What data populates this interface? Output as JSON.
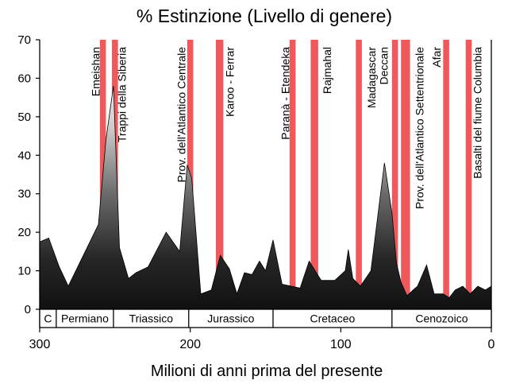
{
  "chart_data": {
    "type": "area",
    "title": "% Estinzione (Livello di genere)",
    "xlabel": "Milioni di anni prima del presente",
    "ylabel": "",
    "xlim": [
      300,
      0
    ],
    "ylim": [
      0,
      70
    ],
    "x_ticks": [
      300,
      200,
      100,
      0
    ],
    "y_ticks": [
      0,
      10,
      20,
      30,
      40,
      50,
      60,
      70
    ],
    "grid": false,
    "colors": {
      "area_dark": "#1a1a1a",
      "area_peak": "#d8d8d8",
      "event_band": "#f0595c",
      "axis": "#000000",
      "background": "#ffffff"
    },
    "series": [
      {
        "x": [
          300,
          294,
          287,
          281,
          261,
          256,
          251,
          247,
          241,
          236,
          228,
          216,
          207,
          202,
          199,
          193,
          186,
          180,
          174,
          169,
          164,
          159,
          154,
          150,
          145,
          139,
          133,
          127,
          121,
          113,
          104,
          97,
          95,
          92,
          87,
          80,
          71,
          66,
          63,
          60,
          56,
          52,
          49,
          43,
          38,
          32,
          28,
          24,
          19,
          14,
          9,
          4,
          0
        ],
        "values": [
          17.5,
          18.5,
          11,
          6,
          22,
          44,
          58,
          16,
          8,
          9.5,
          11,
          20,
          15,
          37.5,
          34,
          4,
          5,
          14,
          10.5,
          4,
          9.5,
          9,
          12.5,
          10,
          18,
          6.5,
          6,
          5.5,
          12.5,
          7.5,
          7.5,
          10,
          15.5,
          8,
          6,
          10,
          38,
          25,
          12,
          7,
          3.5,
          5,
          6,
          11.5,
          4,
          4,
          3,
          5,
          6,
          4,
          6,
          5,
          6
        ]
      }
    ],
    "events": [
      {
        "label": "Emeishan",
        "start": 260,
        "end": 256
      },
      {
        "label": "Trappi della Siberia",
        "start": 252,
        "end": 248
      },
      {
        "label": "Prov. dell'Atlantico Centrale",
        "start": 202,
        "end": 198
      },
      {
        "label": "Karoo - Ferrar",
        "start": 183,
        "end": 178
      },
      {
        "label": "Paranà - Etendeka",
        "start": 134,
        "end": 130
      },
      {
        "label": "Rajmahal",
        "start": 120,
        "end": 115
      },
      {
        "label": "Madagascar",
        "start": 90,
        "end": 86
      },
      {
        "label": "Deccan",
        "start": 66,
        "end": 62
      },
      {
        "label": "Prov. dell'Atlantico Settentrionale",
        "start": 60,
        "end": 54
      },
      {
        "label": "Afar",
        "start": 32,
        "end": 28
      },
      {
        "label": "Basalti del fiume Columbia",
        "start": 17,
        "end": 13
      }
    ],
    "periods": [
      {
        "label": "C",
        "start": 300,
        "end": 289
      },
      {
        "label": "Permiano",
        "start": 289,
        "end": 251
      },
      {
        "label": "Triassico",
        "start": 251,
        "end": 201
      },
      {
        "label": "Jurassico",
        "start": 201,
        "end": 145
      },
      {
        "label": "Cretaceo",
        "start": 145,
        "end": 66
      },
      {
        "label": "Cenozoico",
        "start": 66,
        "end": 0
      }
    ]
  }
}
